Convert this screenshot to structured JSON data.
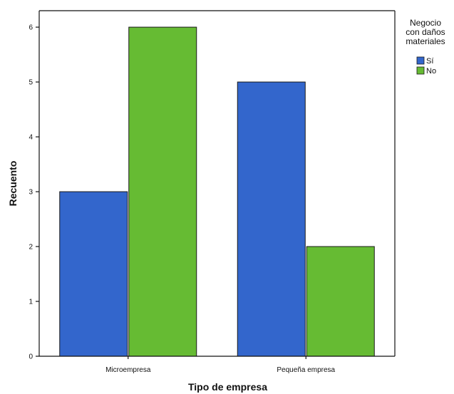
{
  "chart_data": {
    "type": "bar",
    "categories": [
      "Microempresa",
      "Pequeña empresa"
    ],
    "series": [
      {
        "name": "Sí",
        "values": [
          3,
          5
        ],
        "color": "#3366cc"
      },
      {
        "name": "No",
        "values": [
          6,
          2
        ],
        "color": "#66bb33"
      }
    ],
    "xlabel": "Tipo de empresa",
    "ylabel": "Recuento",
    "ylim": [
      0,
      6.3
    ],
    "yticks": [
      0,
      1,
      2,
      3,
      4,
      5,
      6
    ],
    "legend": {
      "title_lines": [
        "Negocio",
        "con daños",
        "materiales"
      ],
      "placement": "top-right"
    },
    "grid": false
  }
}
